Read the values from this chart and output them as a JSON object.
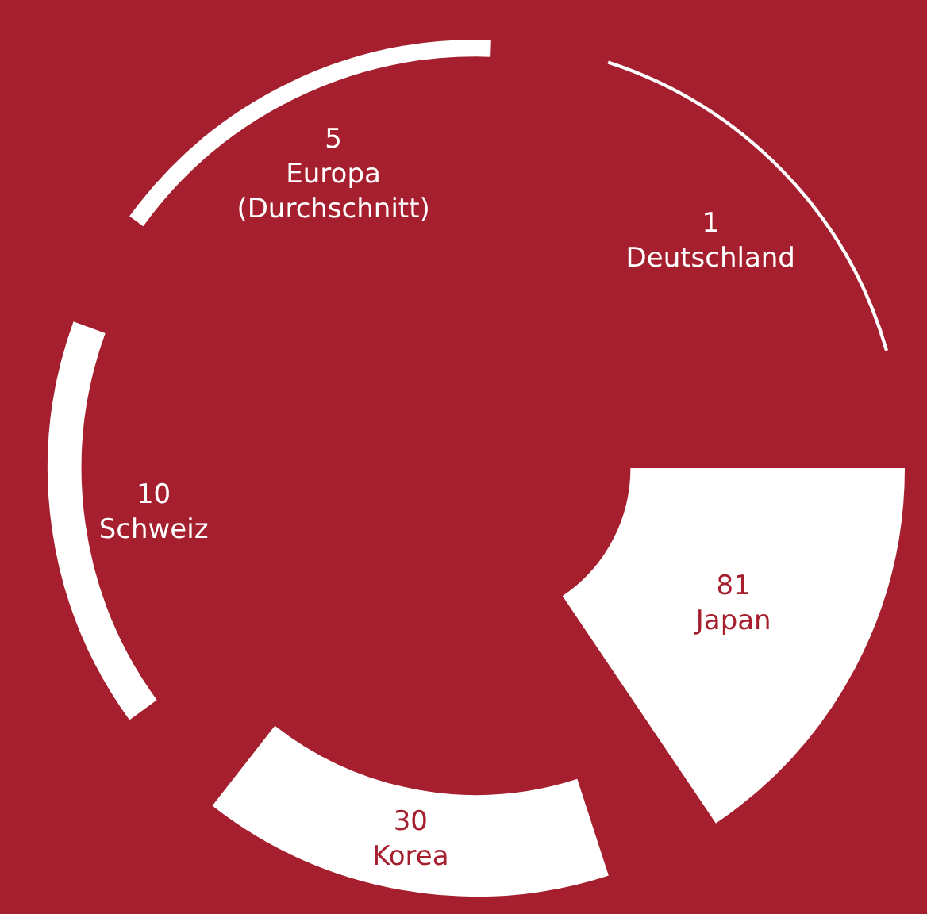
{
  "chart_data": {
    "type": "other",
    "categories": [
      "Japan",
      "Korea",
      "Schweiz",
      "Europa (Durchschnitt)",
      "Deutschland"
    ],
    "values": [
      81,
      30,
      10,
      5,
      1
    ],
    "colors": [
      "#ffffff",
      "#ffffff",
      "#ffffff",
      "#ffffff",
      "#ffffff"
    ],
    "data_labels": true
  }
}
